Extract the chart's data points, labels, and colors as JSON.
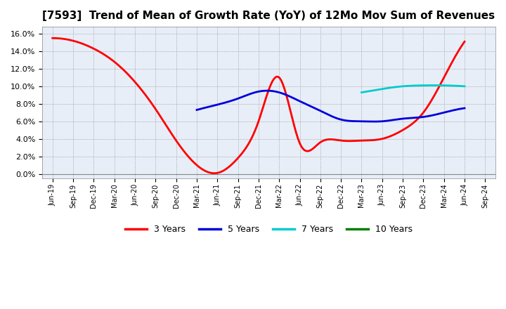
{
  "title": "[7593]  Trend of Mean of Growth Rate (YoY) of 12Mo Mov Sum of Revenues",
  "title_fontsize": 11,
  "background_color": "#ffffff",
  "plot_background": "#e8eef8",
  "ylim": [
    -0.005,
    0.168
  ],
  "x_labels": [
    "Jun-19",
    "Sep-19",
    "Dec-19",
    "Mar-20",
    "Jun-20",
    "Sep-20",
    "Dec-20",
    "Mar-21",
    "Jun-21",
    "Sep-21",
    "Dec-21",
    "Mar-22",
    "Jun-22",
    "Sep-22",
    "Dec-22",
    "Mar-23",
    "Jun-23",
    "Sep-23",
    "Dec-23",
    "Mar-24",
    "Jun-24",
    "Sep-24"
  ],
  "series_3y": {
    "color": "#ff0000",
    "linewidth": 2.0,
    "data_x": [
      0,
      1,
      2,
      3,
      4,
      5,
      6,
      7,
      8,
      9,
      10,
      11,
      12,
      13,
      14,
      15,
      16,
      17,
      18,
      19,
      20
    ],
    "data_y": [
      0.155,
      0.152,
      0.143,
      0.128,
      0.105,
      0.074,
      0.038,
      0.01,
      0.001,
      0.018,
      0.06,
      0.11,
      0.035,
      0.036,
      0.038,
      0.038,
      0.04,
      0.05,
      0.07,
      0.11,
      0.151
    ]
  },
  "series_5y": {
    "color": "#0000dd",
    "linewidth": 2.0,
    "data_x": [
      7,
      8,
      9,
      10,
      11,
      12,
      13,
      14,
      15,
      16,
      17,
      18,
      19,
      20
    ],
    "data_y": [
      0.073,
      0.079,
      0.086,
      0.094,
      0.093,
      0.083,
      0.072,
      0.062,
      0.06,
      0.06,
      0.063,
      0.065,
      0.07,
      0.075
    ]
  },
  "series_7y": {
    "color": "#00cccc",
    "linewidth": 2.0,
    "data_x": [
      15,
      16,
      17,
      18,
      19,
      20
    ],
    "data_y": [
      0.093,
      0.097,
      0.1,
      0.101,
      0.101,
      0.1
    ]
  },
  "series_10y": {
    "color": "#008000",
    "linewidth": 2.0,
    "data_x": [],
    "data_y": []
  },
  "legend_labels": [
    "3 Years",
    "5 Years",
    "7 Years",
    "10 Years"
  ],
  "legend_colors": [
    "#ff0000",
    "#0000dd",
    "#00cccc",
    "#008000"
  ]
}
